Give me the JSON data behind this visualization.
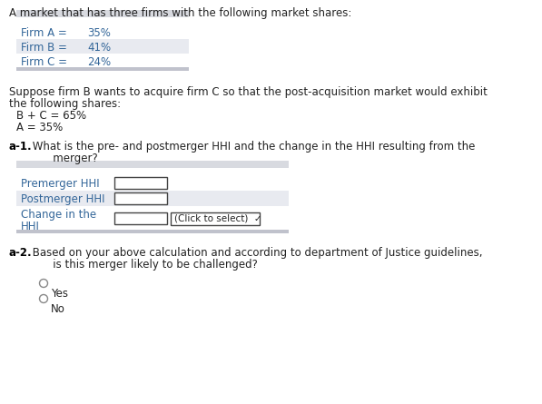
{
  "bg_color": "#ffffff",
  "title_text": "A market that has three firms with the following market shares:",
  "table1_header_color": "#d8dae0",
  "table1_rows": [
    [
      "Firm A =",
      "35%"
    ],
    [
      "Firm B =",
      "41%"
    ],
    [
      "Firm C =",
      "24%"
    ]
  ],
  "table1_row_colors": [
    "#ffffff",
    "#e8eaf0",
    "#ffffff"
  ],
  "table1_bottom_color": "#c0c2cc",
  "suppose_line1": "Suppose firm B wants to acquire firm C so that the post-acquisition market would exhibit",
  "suppose_line2": "the following shares:",
  "suppose_line3": "B + C = 65%",
  "suppose_line4": "A = 35%",
  "a1_bold": "a-1.",
  "a1_line1": " What is the pre- and postmerger HHI and the change in the HHI resulting from the",
  "a1_line2": "       merger?",
  "table2_header_color": "#d8dae0",
  "table2_row1_label": "Premerger HHI",
  "table2_row2_label": "Postmerger HHI",
  "table2_row3_label1": "Change in the",
  "table2_row3_label2": "HHI",
  "table2_row_colors": [
    "#ffffff",
    "#e8eaf0",
    "#ffffff"
  ],
  "table2_bottom_color": "#c0c2cc",
  "click_label": "(Click to select)",
  "dropdown_arrow": "✔",
  "a2_bold": "a-2.",
  "a2_line1": " Based on your above calculation and according to department of Justice guidelines,",
  "a2_line2": "       is this merger likely to be challenged?",
  "radio_yes": "Yes",
  "radio_no": "No",
  "label_color": "#336699",
  "text_color": "#222222",
  "font_size": 8.5,
  "bold_color": "#000000"
}
